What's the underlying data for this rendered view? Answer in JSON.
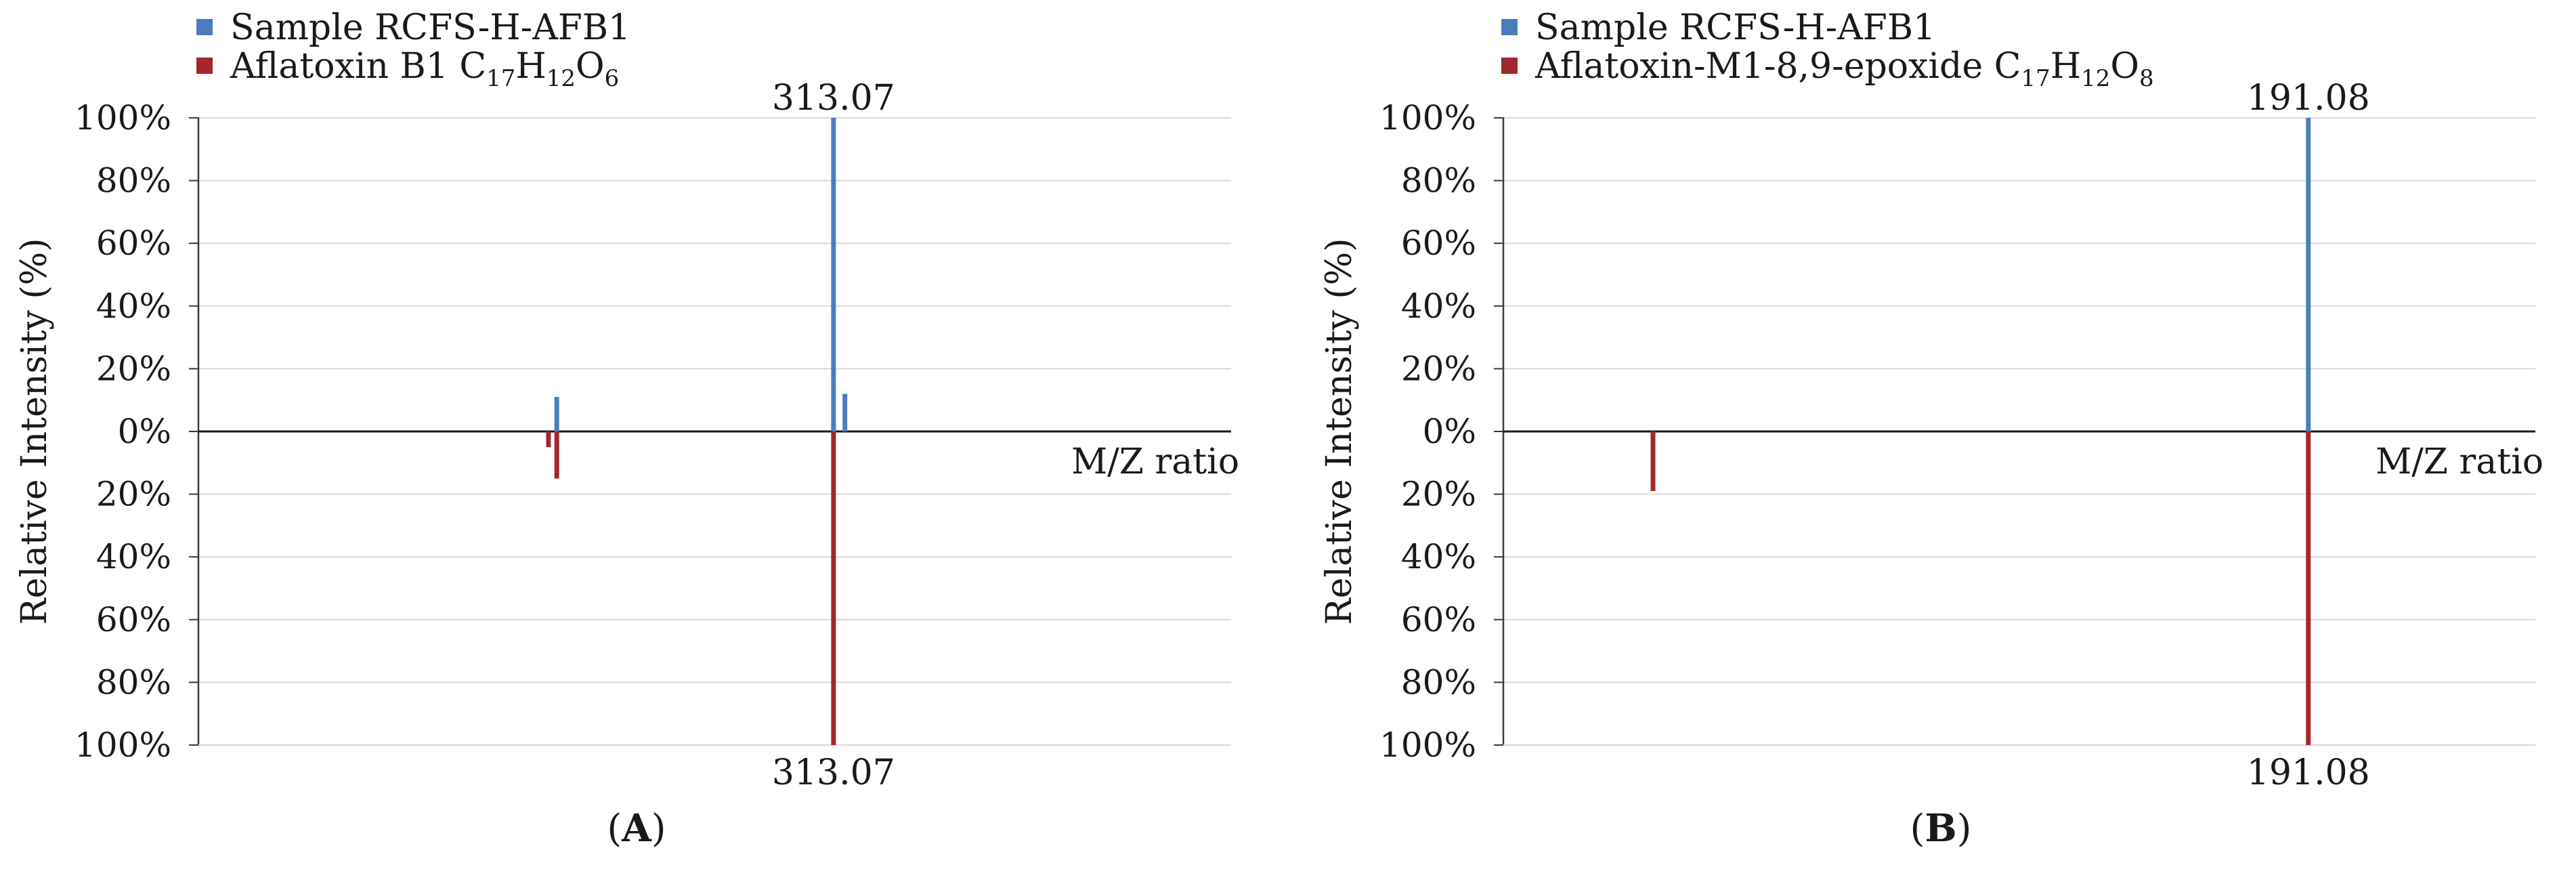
{
  "chart_data": [
    {
      "type": "bar",
      "subtype": "mirror-mass-spectrum",
      "panel_label": "A",
      "ylabel": "Relative Intensity (%)",
      "xlabel": "M/Z ratio",
      "yticks": [
        "100%",
        "80%",
        "60%",
        "40%",
        "20%",
        "0%",
        "20%",
        "40%",
        "60%",
        "80%",
        "100%"
      ],
      "ylim": [
        -100,
        100
      ],
      "xlim": [
        0,
        1
      ],
      "grid": true,
      "legend": "top-left",
      "series": [
        {
          "name": "Sample RCFS-H-AFB1",
          "name_parts": [
            {
              "text": "Sample RCFS-H-AFB1",
              "sub": false
            }
          ],
          "color": "#4a7ebb",
          "direction": "up",
          "peaks": [
            {
              "x": 0.347,
              "value": 11
            },
            {
              "x": 0.615,
              "value": 100,
              "label": "313.07"
            },
            {
              "x": 0.626,
              "value": 12
            }
          ]
        },
        {
          "name": "Aflatoxin B1 C17H12O6",
          "name_parts": [
            {
              "text": "Aflatoxin B1 C",
              "sub": false
            },
            {
              "text": "17",
              "sub": true
            },
            {
              "text": "H",
              "sub": false
            },
            {
              "text": "12",
              "sub": true
            },
            {
              "text": "O",
              "sub": false
            },
            {
              "text": "6",
              "sub": true
            }
          ],
          "color": "#a4262c",
          "direction": "down",
          "peaks": [
            {
              "x": 0.339,
              "value": 5
            },
            {
              "x": 0.347,
              "value": 15
            },
            {
              "x": 0.615,
              "value": 100,
              "label": "313.07"
            }
          ]
        }
      ]
    },
    {
      "type": "bar",
      "subtype": "mirror-mass-spectrum",
      "panel_label": "B",
      "ylabel": "Relative Intensity (%)",
      "xlabel": "M/Z ratio",
      "yticks": [
        "100%",
        "80%",
        "60%",
        "40%",
        "20%",
        "0%",
        "20%",
        "40%",
        "60%",
        "80%",
        "100%"
      ],
      "ylim": [
        -100,
        100
      ],
      "xlim": [
        0,
        1
      ],
      "grid": true,
      "legend": "top-left",
      "series": [
        {
          "name": "Sample RCFS-H-AFB1",
          "name_parts": [
            {
              "text": "Sample RCFS-H-AFB1",
              "sub": false
            }
          ],
          "color": "#4a7ebb",
          "direction": "up",
          "peaks": [
            {
              "x": 0.78,
              "value": 100,
              "label": "191.08"
            }
          ]
        },
        {
          "name": "Aflatoxin-M1-8,9-epoxide C17H12O8",
          "name_parts": [
            {
              "text": "Aflatoxin-M1-8,9-epoxide C",
              "sub": false
            },
            {
              "text": "17",
              "sub": true
            },
            {
              "text": "H",
              "sub": false
            },
            {
              "text": "12",
              "sub": true
            },
            {
              "text": "O",
              "sub": false
            },
            {
              "text": "8",
              "sub": true
            }
          ],
          "color": "#a4262c",
          "direction": "down",
          "peaks": [
            {
              "x": 0.145,
              "value": 19
            },
            {
              "x": 0.78,
              "value": 100,
              "label": "191.08"
            }
          ]
        }
      ]
    }
  ]
}
